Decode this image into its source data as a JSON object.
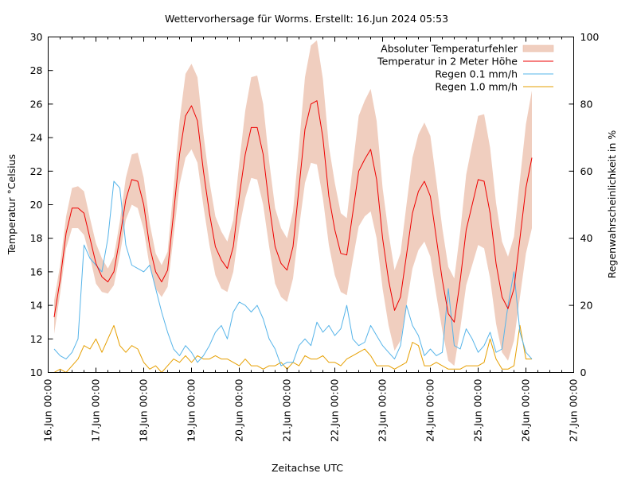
{
  "chart_data": {
    "type": "line",
    "title": "Wettervorhersage für Worms. Erstellt: 16.Jun 2024 05:53",
    "xlabel": "Zeitachse UTC",
    "ylabel": "Temperatur °Celsius",
    "y2label": "Regenwahrscheinlichkeit in %",
    "ylim": [
      10,
      30
    ],
    "y2lim": [
      0,
      100
    ],
    "yticks": [
      10,
      12,
      14,
      16,
      18,
      20,
      22,
      24,
      26,
      28,
      30
    ],
    "y2ticks": [
      0,
      20,
      40,
      60,
      80,
      100
    ],
    "xlim_hours": [
      0,
      264
    ],
    "xtick_labels": [
      "16.Jun 00:00",
      "17.Jun 00:00",
      "18.Jun 00:00",
      "19.Jun 00:00",
      "20.Jun 00:00",
      "21.Jun 00:00",
      "22.Jun 00:00",
      "23.Jun 00:00",
      "24.Jun 00:00",
      "25.Jun 00:00",
      "26.Jun 00:00",
      "27.Jun 00:00"
    ],
    "x_start_label": "16.Jun 03:00",
    "x_step_hours": 3,
    "grid": false,
    "legend_position": "top-right",
    "legend": [
      {
        "label": "Absoluter Temperaturfehler",
        "kind": "band",
        "color": "#f0cebf"
      },
      {
        "label": "Temperatur in 2 Meter Höhe",
        "kind": "line",
        "color": "#ee0000"
      },
      {
        "label": "Regen 0.1 mm/h",
        "kind": "line",
        "color": "#56b4e9"
      },
      {
        "label": "Regen 1.0 mm/h",
        "kind": "line",
        "color": "#e69f00"
      }
    ],
    "series": [
      {
        "name": "Temperatur in 2 Meter Höhe",
        "axis": "y",
        "values": [
          13.3,
          15.5,
          18.3,
          19.8,
          19.8,
          19.5,
          18.0,
          16.5,
          15.7,
          15.4,
          16.0,
          18.0,
          20.3,
          21.5,
          21.4,
          20.0,
          17.5,
          16.0,
          15.4,
          16.1,
          19.5,
          23.0,
          25.3,
          25.9,
          25.0,
          22.0,
          19.5,
          17.5,
          16.7,
          16.2,
          17.5,
          20.5,
          23.0,
          24.6,
          24.6,
          23.0,
          20.0,
          17.5,
          16.5,
          16.1,
          17.5,
          21.0,
          24.5,
          26.0,
          26.2,
          24.0,
          20.5,
          18.5,
          17.1,
          17.0,
          19.5,
          22.0,
          22.7,
          23.3,
          21.5,
          18.0,
          15.5,
          13.7,
          14.5,
          17.0,
          19.5,
          20.8,
          21.4,
          20.5,
          18.0,
          15.5,
          13.5,
          13.0,
          15.5,
          18.5,
          20.0,
          21.5,
          21.4,
          19.5,
          16.5,
          14.5,
          13.8,
          15.0,
          18.0,
          21.0,
          22.8
        ]
      },
      {
        "name": "Absoluter Temperaturfehler (unten)",
        "axis": "y",
        "values": [
          12.3,
          14.7,
          17.4,
          18.6,
          18.6,
          18.2,
          16.9,
          15.3,
          14.8,
          14.7,
          15.2,
          17.0,
          19.1,
          20.0,
          19.8,
          18.5,
          16.3,
          15.0,
          14.5,
          15.1,
          18.1,
          21.2,
          22.8,
          23.3,
          22.5,
          19.9,
          17.6,
          15.8,
          15.0,
          14.8,
          16.0,
          18.6,
          20.4,
          21.6,
          21.5,
          20.0,
          17.5,
          15.3,
          14.5,
          14.2,
          15.6,
          18.6,
          21.3,
          22.5,
          22.4,
          20.4,
          17.6,
          15.8,
          14.8,
          14.6,
          16.7,
          18.7,
          19.3,
          19.6,
          18.0,
          15.0,
          12.8,
          11.3,
          11.9,
          14.0,
          16.2,
          17.3,
          17.8,
          16.9,
          14.6,
          12.5,
          10.7,
          10.4,
          12.6,
          15.2,
          16.4,
          17.6,
          17.4,
          15.6,
          12.9,
          11.2,
          10.7,
          11.9,
          14.5,
          17.1,
          18.6
        ]
      },
      {
        "name": "Absoluter Temperaturfehler (oben)",
        "axis": "y",
        "values": [
          14.3,
          16.4,
          19.3,
          21.0,
          21.1,
          20.8,
          19.2,
          17.7,
          16.8,
          16.2,
          16.9,
          19.0,
          21.6,
          23.0,
          23.1,
          21.6,
          18.9,
          17.1,
          16.4,
          17.2,
          21.0,
          25.0,
          27.8,
          28.4,
          27.6,
          24.2,
          21.4,
          19.3,
          18.4,
          17.8,
          19.1,
          22.5,
          25.6,
          27.6,
          27.7,
          26.0,
          22.6,
          19.8,
          18.6,
          18.0,
          19.6,
          23.5,
          27.6,
          29.5,
          29.8,
          27.5,
          23.5,
          21.3,
          19.5,
          19.2,
          22.3,
          25.3,
          26.2,
          26.9,
          25.0,
          21.0,
          18.3,
          16.1,
          17.1,
          20.0,
          22.8,
          24.2,
          24.9,
          24.1,
          21.4,
          18.6,
          16.3,
          15.6,
          18.4,
          21.8,
          23.6,
          25.3,
          25.4,
          23.4,
          20.1,
          17.8,
          16.9,
          18.1,
          21.5,
          24.8,
          26.8
        ]
      },
      {
        "name": "Regen 0.1 mm/h",
        "axis": "y2",
        "values": [
          7,
          5,
          4,
          6,
          10,
          38,
          34,
          32,
          30,
          40,
          57,
          55,
          38,
          32,
          31,
          30,
          32,
          25,
          18,
          12,
          7,
          5,
          8,
          6,
          3,
          5,
          8,
          12,
          14,
          10,
          18,
          21,
          20,
          18,
          20,
          16,
          10,
          7,
          2,
          3,
          3,
          8,
          10,
          8,
          15,
          12,
          14,
          11,
          13,
          20,
          10,
          8,
          9,
          14,
          11,
          8,
          6,
          4,
          8,
          20,
          14,
          11,
          5,
          7,
          5,
          6,
          25,
          8,
          7,
          13,
          10,
          6,
          8,
          12,
          6,
          7,
          20,
          30,
          12,
          6,
          4
        ]
      },
      {
        "name": "Regen 1.0 mm/h",
        "axis": "y2",
        "values": [
          0,
          1,
          0,
          2,
          4,
          8,
          7,
          10,
          6,
          10,
          14,
          8,
          6,
          8,
          7,
          3,
          1,
          2,
          0,
          2,
          4,
          3,
          5,
          3,
          5,
          4,
          4,
          5,
          4,
          4,
          3,
          2,
          4,
          2,
          2,
          1,
          2,
          2,
          3,
          1,
          3,
          2,
          5,
          4,
          4,
          5,
          3,
          3,
          2,
          4,
          5,
          6,
          7,
          5,
          2,
          2,
          2,
          1,
          2,
          3,
          9,
          8,
          2,
          2,
          3,
          2,
          1,
          1,
          1,
          2,
          2,
          2,
          3,
          10,
          4,
          1,
          1,
          2,
          14,
          4,
          4
        ]
      }
    ]
  }
}
